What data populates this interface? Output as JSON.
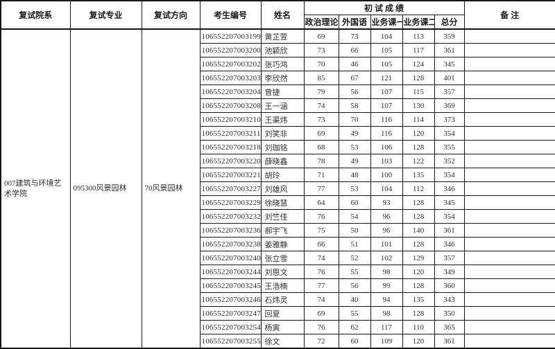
{
  "table": {
    "headers": {
      "dept": "复试院系",
      "major": "复试专业",
      "direction": "复试方向",
      "candidate_no": "考生编号",
      "name": "姓名",
      "initial_scores_group": "初 试 成 绩",
      "politics": "政治理论",
      "foreign_lang": "外国语",
      "course1": "业务课一",
      "course2": "业务课二",
      "total": "总分",
      "remarks": "备 注"
    },
    "merged": {
      "dept": "007建筑与环境艺术学院",
      "major": "095300风景园林",
      "direction": "70风景园林"
    },
    "rows": [
      {
        "no": "106552207003199",
        "name": "黄芷萱",
        "politics": "69",
        "foreign": "73",
        "course1": "104",
        "course2": "113",
        "total": "359",
        "remark": ""
      },
      {
        "no": "106552207003200",
        "name": "池颖欣",
        "politics": "73",
        "foreign": "66",
        "course1": "105",
        "course2": "117",
        "total": "361",
        "remark": ""
      },
      {
        "no": "106552207003202",
        "name": "张巧鸿",
        "politics": "70",
        "foreign": "46",
        "course1": "105",
        "course2": "124",
        "total": "345",
        "remark": ""
      },
      {
        "no": "106552207003203",
        "name": "李欣然",
        "politics": "85",
        "foreign": "67",
        "course1": "121",
        "course2": "128",
        "total": "401",
        "remark": ""
      },
      {
        "no": "106552207003204",
        "name": "曾捷",
        "politics": "79",
        "foreign": "56",
        "course1": "107",
        "course2": "115",
        "total": "357",
        "remark": ""
      },
      {
        "no": "106552207003208",
        "name": "王一涵",
        "politics": "74",
        "foreign": "58",
        "course1": "107",
        "course2": "130",
        "total": "369",
        "remark": ""
      },
      {
        "no": "106552207003210",
        "name": "王渠炜",
        "politics": "73",
        "foreign": "70",
        "course1": "116",
        "course2": "114",
        "total": "373",
        "remark": ""
      },
      {
        "no": "106552207003211",
        "name": "刘笑非",
        "politics": "69",
        "foreign": "49",
        "course1": "116",
        "course2": "120",
        "total": "354",
        "remark": ""
      },
      {
        "no": "106552207003218",
        "name": "刘珈铭",
        "politics": "68",
        "foreign": "53",
        "course1": "106",
        "course2": "128",
        "total": "355",
        "remark": ""
      },
      {
        "no": "106552207003220",
        "name": "薛晓鑫",
        "politics": "78",
        "foreign": "49",
        "course1": "103",
        "course2": "122",
        "total": "352",
        "remark": ""
      },
      {
        "no": "106552207003221",
        "name": "胡玲",
        "politics": "71",
        "foreign": "48",
        "course1": "100",
        "course2": "135",
        "total": "354",
        "remark": ""
      },
      {
        "no": "106552207003227",
        "name": "刘雄风",
        "politics": "77",
        "foreign": "53",
        "course1": "104",
        "course2": "112",
        "total": "346",
        "remark": ""
      },
      {
        "no": "106552207003229",
        "name": "徐晓慧",
        "politics": "64",
        "foreign": "60",
        "course1": "93",
        "course2": "128",
        "total": "345",
        "remark": ""
      },
      {
        "no": "106552207003232",
        "name": "刘竺佳",
        "politics": "76",
        "foreign": "54",
        "course1": "96",
        "course2": "128",
        "total": "354",
        "remark": ""
      },
      {
        "no": "106552207003236",
        "name": "郝宇飞",
        "politics": "75",
        "foreign": "50",
        "course1": "96",
        "course2": "140",
        "total": "361",
        "remark": ""
      },
      {
        "no": "106552207003238",
        "name": "姜雅静",
        "politics": "66",
        "foreign": "51",
        "course1": "101",
        "course2": "128",
        "total": "346",
        "remark": ""
      },
      {
        "no": "106552207003240",
        "name": "张立雪",
        "politics": "74",
        "foreign": "52",
        "course1": "102",
        "course2": "129",
        "total": "357",
        "remark": ""
      },
      {
        "no": "106552207003244",
        "name": "刘恩文",
        "politics": "76",
        "foreign": "55",
        "course1": "98",
        "course2": "120",
        "total": "349",
        "remark": ""
      },
      {
        "no": "106552207003245",
        "name": "王浩楠",
        "politics": "77",
        "foreign": "56",
        "course1": "99",
        "course2": "128",
        "total": "360",
        "remark": ""
      },
      {
        "no": "106552207003246",
        "name": "石炜灵",
        "politics": "74",
        "foreign": "40",
        "course1": "94",
        "course2": "135",
        "total": "343",
        "remark": ""
      },
      {
        "no": "106552207003247",
        "name": "回夏",
        "politics": "69",
        "foreign": "55",
        "course1": "98",
        "course2": "128",
        "total": "350",
        "remark": ""
      },
      {
        "no": "106552207003254",
        "name": "杨寅",
        "politics": "76",
        "foreign": "62",
        "course1": "117",
        "course2": "110",
        "total": "365",
        "remark": ""
      },
      {
        "no": "106552207003255",
        "name": "徐文",
        "politics": "72",
        "foreign": "60",
        "course1": "109",
        "course2": "120",
        "total": "361",
        "remark": ""
      }
    ]
  }
}
